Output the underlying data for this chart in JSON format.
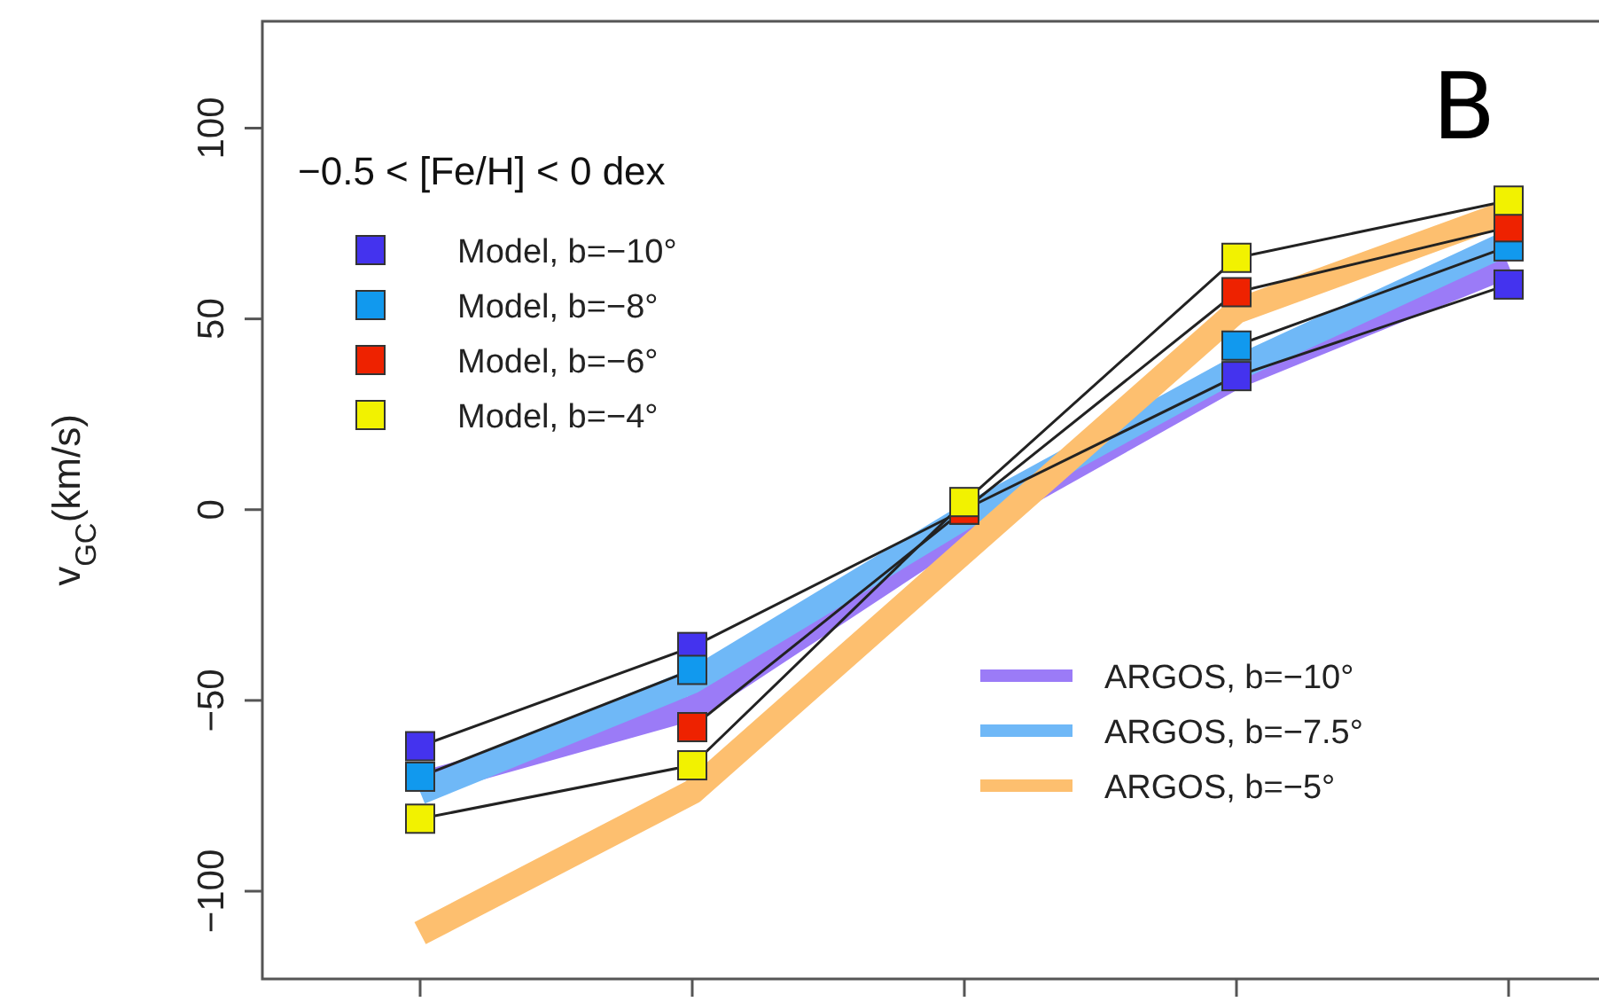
{
  "chart_data": {
    "type": "line",
    "ylabel": "v$_{GC}$(km/s)",
    "annotations": [
      "−0.5 < [Fe/H] < 0 dex",
      "B"
    ],
    "categories": [
      null,
      null,
      null,
      null,
      null
    ],
    "series": [
      {
        "name": "Model, b=−10°",
        "color": "#4433ee",
        "values": [
          -62,
          -36,
          0,
          35,
          59
        ]
      },
      {
        "name": "Model, b=−8°",
        "color": "#1199ee",
        "values": [
          -70,
          -42,
          null,
          43,
          69
        ]
      },
      {
        "name": "Model, b=−6°",
        "color": "#ee2200",
        "values": [
          null,
          -57,
          0,
          57,
          74
        ]
      },
      {
        "name": "Model, b=−4°",
        "color": "#f2f200",
        "values": [
          -81,
          -67,
          2,
          66,
          81
        ]
      },
      {
        "name": "ARGOS, b=−10°",
        "color": "#9b7bf7",
        "marker": "none",
        "values": [
          -72,
          -52,
          -5,
          35,
          64
        ]
      },
      {
        "name": "ARGOS, b=−7.5°",
        "color": "#6fb8f7",
        "marker": "none",
        "values": [
          -74,
          -45,
          -2,
          37,
          70
        ]
      },
      {
        "name": "ARGOS, b=−5°",
        "color": "#fdbf6f",
        "marker": "none",
        "values": [
          -111,
          -74,
          -11,
          52,
          78
        ]
      }
    ],
    "ylim": [
      -123,
      128
    ],
    "yticks": [
      -100,
      -50,
      0,
      50,
      100
    ],
    "marker": "square",
    "legend": "left",
    "tick_labels": "y",
    "grid": false
  }
}
